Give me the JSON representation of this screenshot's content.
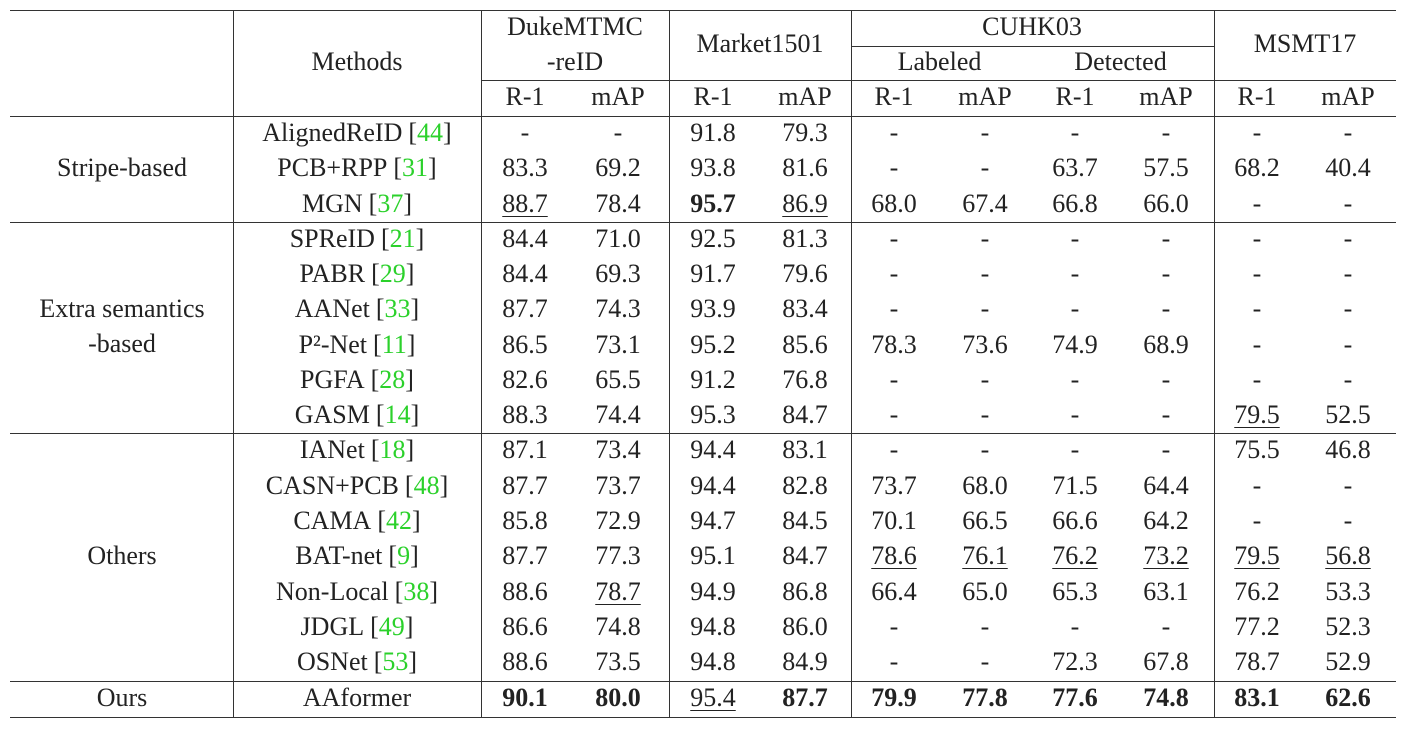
{
  "table": {
    "header": {
      "methods": "Methods",
      "datasets": [
        {
          "name": [
            "DukeMTMC",
            "-reID"
          ],
          "metrics": [
            "R-1",
            "mAP"
          ]
        },
        {
          "name": [
            "Market1501"
          ],
          "metrics": [
            "R-1",
            "mAP"
          ]
        },
        {
          "name": [
            "CUHK03"
          ],
          "subsets": [
            {
              "name": "Labeled",
              "metrics": [
                "R-1",
                "mAP"
              ]
            },
            {
              "name": "Detected",
              "metrics": [
                "R-1",
                "mAP"
              ]
            }
          ]
        },
        {
          "name": [
            "MSMT17"
          ],
          "metrics": [
            "R-1",
            "mAP"
          ]
        }
      ]
    },
    "groups": [
      {
        "label": [
          "Stripe-based"
        ],
        "rows": [
          {
            "method": "AlignedReID",
            "ref": "[44]",
            "values": [
              "-",
              "-",
              "91.8",
              "79.3",
              "-",
              "-",
              "-",
              "-",
              "-",
              "-"
            ]
          },
          {
            "method": "PCB+RPP",
            "ref": "[31]",
            "values": [
              "83.3",
              "69.2",
              "93.8",
              "81.6",
              "-",
              "-",
              "63.7",
              "57.5",
              "68.2",
              "40.4"
            ]
          },
          {
            "method": "MGN",
            "ref": "[37]",
            "values": [
              "88.7",
              "78.4",
              "95.7",
              "86.9",
              "68.0",
              "67.4",
              "66.8",
              "66.0",
              "-",
              "-"
            ],
            "underline": [
              0,
              3
            ],
            "bold": [
              2
            ]
          }
        ]
      },
      {
        "label": [
          "Extra semantics",
          "-based"
        ],
        "rows": [
          {
            "method": "SPReID",
            "ref": "[21]",
            "values": [
              "84.4",
              "71.0",
              "92.5",
              "81.3",
              "-",
              "-",
              "-",
              "-",
              "-",
              "-"
            ]
          },
          {
            "method": "PABR",
            "ref": "[29]",
            "values": [
              "84.4",
              "69.3",
              "91.7",
              "79.6",
              "-",
              "-",
              "-",
              "-",
              "-",
              "-"
            ]
          },
          {
            "method": "AANet",
            "ref": "[33]",
            "values": [
              "87.7",
              "74.3",
              "93.9",
              "83.4",
              "-",
              "-",
              "-",
              "-",
              "-",
              "-"
            ]
          },
          {
            "method": "P²-Net",
            "ref": "[11]",
            "values": [
              "86.5",
              "73.1",
              "95.2",
              "85.6",
              "78.3",
              "73.6",
              "74.9",
              "68.9",
              "-",
              "-"
            ]
          },
          {
            "method": "PGFA",
            "ref": "[28]",
            "values": [
              "82.6",
              "65.5",
              "91.2",
              "76.8",
              "-",
              "-",
              "-",
              "-",
              "-",
              "-"
            ]
          },
          {
            "method": "GASM",
            "ref": "[14]",
            "values": [
              "88.3",
              "74.4",
              "95.3",
              "84.7",
              "-",
              "-",
              "-",
              "-",
              "79.5",
              "52.5"
            ],
            "underline": [
              8
            ]
          }
        ]
      },
      {
        "label": [
          "Others"
        ],
        "rows": [
          {
            "method": "IANet",
            "ref": "[18]",
            "values": [
              "87.1",
              "73.4",
              "94.4",
              "83.1",
              "-",
              "-",
              "-",
              "-",
              "75.5",
              "46.8"
            ]
          },
          {
            "method": "CASN+PCB",
            "ref": "[48]",
            "values": [
              "87.7",
              "73.7",
              "94.4",
              "82.8",
              "73.7",
              "68.0",
              "71.5",
              "64.4",
              "-",
              "-"
            ]
          },
          {
            "method": "CAMA",
            "ref": "[42]",
            "values": [
              "85.8",
              "72.9",
              "94.7",
              "84.5",
              "70.1",
              "66.5",
              "66.6",
              "64.2",
              "-",
              "-"
            ]
          },
          {
            "method": "BAT-net",
            "ref": "[9]",
            "values": [
              "87.7",
              "77.3",
              "95.1",
              "84.7",
              "78.6",
              "76.1",
              "76.2",
              "73.2",
              "79.5",
              "56.8"
            ],
            "underline": [
              4,
              5,
              6,
              7,
              8,
              9
            ]
          },
          {
            "method": "Non-Local",
            "ref": "[38]",
            "values": [
              "88.6",
              "78.7",
              "94.9",
              "86.8",
              "66.4",
              "65.0",
              "65.3",
              "63.1",
              "76.2",
              "53.3"
            ],
            "underline": [
              1
            ]
          },
          {
            "method": "JDGL",
            "ref": "[49]",
            "values": [
              "86.6",
              "74.8",
              "94.8",
              "86.0",
              "-",
              "-",
              "-",
              "-",
              "77.2",
              "52.3"
            ]
          },
          {
            "method": "OSNet",
            "ref": "[53]",
            "values": [
              "88.6",
              "73.5",
              "94.8",
              "84.9",
              "-",
              "-",
              "72.3",
              "67.8",
              "78.7",
              "52.9"
            ]
          }
        ]
      },
      {
        "label": [
          "Ours"
        ],
        "rows": [
          {
            "method": "AAformer",
            "values": [
              "90.1",
              "80.0",
              "95.4",
              "87.7",
              "79.9",
              "77.8",
              "77.6",
              "74.8",
              "83.1",
              "62.6"
            ],
            "underline": [
              2
            ],
            "bold": [
              0,
              1,
              3,
              4,
              5,
              6,
              7,
              8,
              9
            ]
          }
        ]
      }
    ]
  }
}
